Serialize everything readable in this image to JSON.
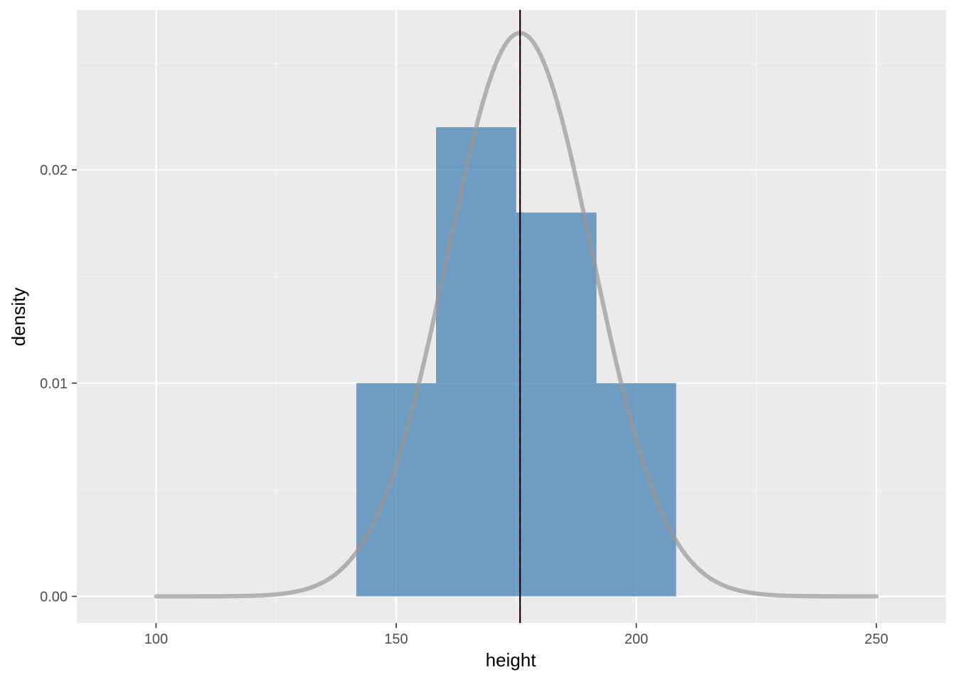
{
  "chart_data": {
    "type": "histogram",
    "xlabel": "height",
    "ylabel": "density",
    "xlim": [
      83.5,
      264.5
    ],
    "ylim": [
      -0.00125,
      0.0275
    ],
    "x_ticks": [
      100,
      150,
      200,
      250
    ],
    "x_tick_labels": [
      "100",
      "150",
      "200",
      "250"
    ],
    "x_minor": [
      125,
      175,
      225
    ],
    "y_ticks": [
      0.0,
      0.01,
      0.02
    ],
    "y_tick_labels": [
      "0.00",
      "0.01",
      "0.02"
    ],
    "y_minor": [
      0.005,
      0.015,
      0.025
    ],
    "bins": [
      {
        "x0": 141.7,
        "x1": 158.3,
        "density": 0.01
      },
      {
        "x0": 158.3,
        "x1": 175.0,
        "density": 0.022
      },
      {
        "x0": 175.0,
        "x1": 191.7,
        "density": 0.018
      },
      {
        "x0": 191.7,
        "x1": 208.3,
        "density": 0.01
      }
    ],
    "density_curve": {
      "distribution": "normal",
      "mean": 175.8,
      "sd": 15.1,
      "x_range": [
        100,
        250
      ]
    },
    "vlines": [
      {
        "x": 175.8,
        "style": "dashed",
        "color": "#cc0000"
      },
      {
        "x": 175.8,
        "style": "solid",
        "color": "#000000"
      }
    ],
    "colors": {
      "panel_bg": "#ebebeb",
      "grid_major": "#ffffff",
      "grid_minor": "#f5f5f5",
      "bar_fill": "#4682b4",
      "bar_opacity": 0.75,
      "curve": "#999999",
      "curve_opacity": 0.7
    },
    "grid": true
  }
}
